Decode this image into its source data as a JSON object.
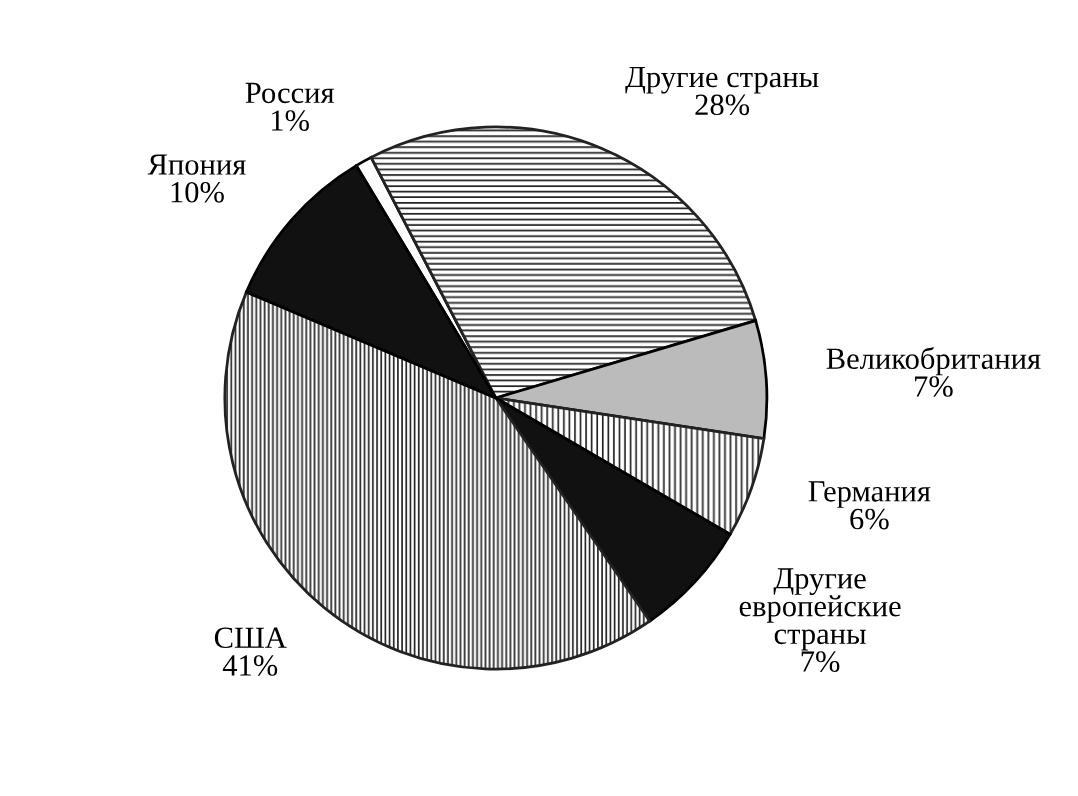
{
  "chart_data": {
    "type": "pie",
    "categories": [
      "Россия",
      "Другие страны",
      "Великобритания",
      "Германия",
      "Другие\nевропейские\nстраны",
      "США",
      "Япония"
    ],
    "values": [
      1,
      28,
      7,
      6,
      7,
      41,
      10
    ],
    "value_labels": [
      "1%",
      "28%",
      "7%",
      "6%",
      "7%",
      "41%",
      "10%"
    ],
    "colors": [
      "#ffffff",
      "#222222",
      "#bbbbbb",
      "#222222",
      "#111111",
      "#222222",
      "#111111"
    ]
  }
}
